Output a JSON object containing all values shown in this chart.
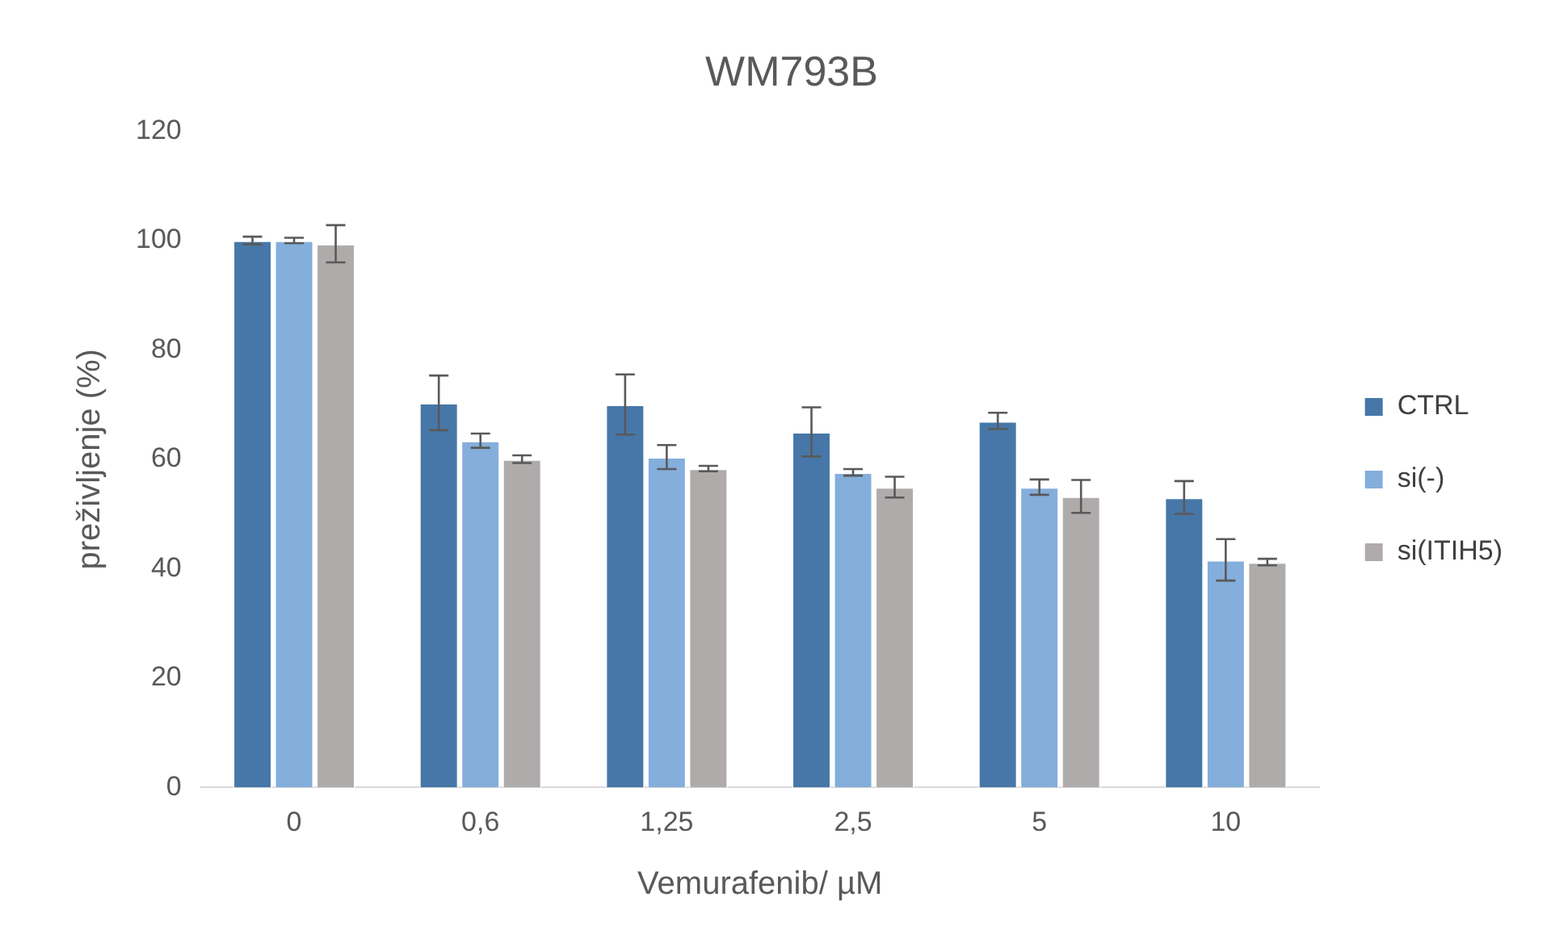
{
  "chart_data": {
    "type": "bar",
    "title": "WM793B",
    "xlabel": "Vemurafenib/ µM",
    "ylabel": "preživljenje (%)",
    "categories": [
      "0",
      "0,6",
      "1,25",
      "2,5",
      "5",
      "10"
    ],
    "series": [
      {
        "name": "CTRL",
        "color": "#4677a8",
        "values": [
          100,
          70.3,
          70,
          65,
          67,
          53
        ],
        "errors": [
          0.7,
          5,
          5.5,
          4.5,
          1.5,
          3
        ]
      },
      {
        "name": "si(-)",
        "color": "#84aedb",
        "values": [
          100,
          63.4,
          60.4,
          57.6,
          54.9,
          41.6
        ],
        "errors": [
          0.5,
          1.3,
          2.2,
          0.6,
          1.4,
          3.8
        ]
      },
      {
        "name": "si(ITIH5)",
        "color": "#afabab",
        "values": [
          99.4,
          60,
          58.3,
          54.9,
          53.2,
          41.2
        ],
        "errors": [
          3.4,
          0.7,
          0.5,
          1.9,
          3,
          0.6
        ]
      }
    ],
    "ylim": [
      0,
      120
    ],
    "yticks": [
      0,
      20,
      40,
      60,
      80,
      100,
      120
    ],
    "grid": false,
    "legend": "right"
  }
}
